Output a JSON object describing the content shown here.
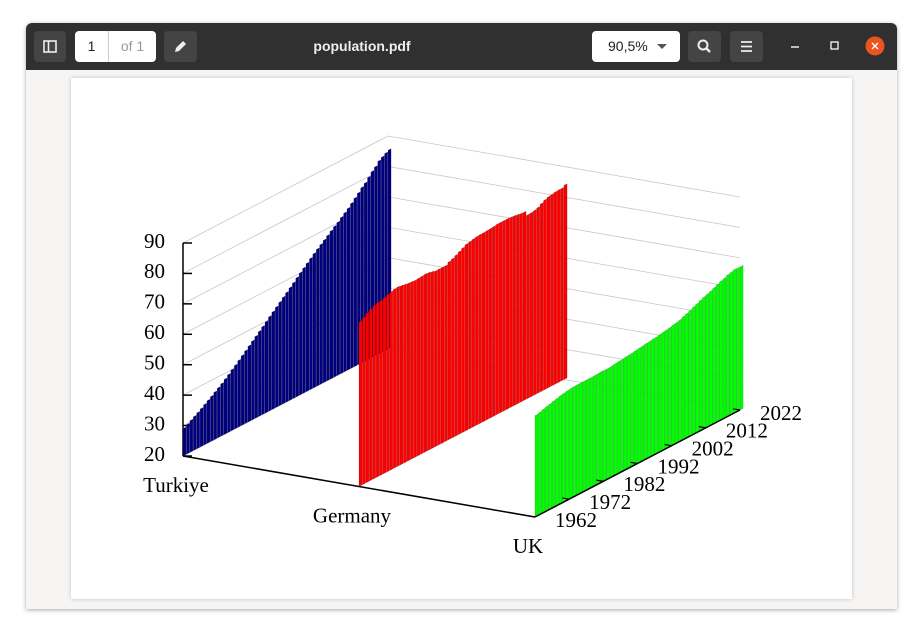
{
  "viewer": {
    "title": "population.pdf",
    "page_number": "1",
    "page_count": "of 1",
    "zoom": "90,5%"
  },
  "chart_data": {
    "type": "bar3d",
    "categories": [
      "Turkiye",
      "Germany",
      "UK"
    ],
    "x": [
      1962,
      1963,
      1964,
      1965,
      1966,
      1967,
      1968,
      1969,
      1970,
      1971,
      1972,
      1973,
      1974,
      1975,
      1976,
      1977,
      1978,
      1979,
      1980,
      1981,
      1982,
      1983,
      1984,
      1985,
      1986,
      1987,
      1988,
      1989,
      1990,
      1991,
      1992,
      1993,
      1994,
      1995,
      1996,
      1997,
      1998,
      1999,
      2000,
      2001,
      2002,
      2003,
      2004,
      2005,
      2006,
      2007,
      2008,
      2009,
      2010,
      2011,
      2012,
      2013,
      2014,
      2015,
      2016,
      2017,
      2018,
      2019,
      2020,
      2021,
      2022
    ],
    "series": [
      {
        "color": "#00007f",
        "values": [
          29.0,
          29.7,
          30.4,
          31.1,
          31.8,
          32.5,
          33.3,
          34.0,
          34.8,
          35.6,
          36.4,
          37.2,
          38.1,
          39.0,
          40.0,
          40.9,
          41.9,
          42.9,
          43.9,
          44.9,
          45.9,
          46.9,
          47.9,
          48.9,
          49.9,
          51.0,
          52.0,
          53.0,
          54.0,
          55.0,
          56.0,
          57.0,
          58.0,
          59.1,
          60.1,
          61.1,
          62.1,
          63.1,
          64.1,
          65.0,
          65.9,
          66.8,
          67.7,
          68.6,
          69.5,
          70.3,
          71.3,
          72.2,
          73.1,
          74.2,
          75.3,
          76.4,
          77.6,
          78.5,
          79.8,
          81.1,
          82.1,
          83.4,
          84.1,
          84.8,
          85.3
        ]
      },
      {
        "color": "#ff0000",
        "values": [
          74.0,
          74.8,
          75.6,
          76.3,
          76.9,
          77.2,
          77.3,
          77.7,
          78.2,
          78.5,
          78.8,
          78.9,
          78.7,
          78.5,
          78.3,
          78.2,
          78.1,
          78.2,
          78.3,
          78.4,
          78.3,
          78.0,
          77.7,
          77.7,
          77.7,
          77.7,
          78.4,
          78.8,
          79.4,
          80.0,
          80.6,
          81.2,
          81.4,
          81.7,
          81.9,
          82.0,
          82.0,
          82.1,
          82.2,
          82.3,
          82.5,
          82.5,
          82.5,
          82.5,
          82.4,
          82.3,
          82.1,
          81.9,
          81.8,
          80.3,
          80.4,
          80.6,
          81.0,
          81.7,
          82.3,
          82.7,
          82.9,
          83.1,
          83.2,
          83.2,
          83.8
        ]
      },
      {
        "color": "#00ff00",
        "values": [
          53.3,
          53.6,
          54.0,
          54.3,
          54.6,
          54.9,
          55.2,
          55.5,
          55.7,
          55.9,
          56.1,
          56.2,
          56.2,
          56.2,
          56.2,
          56.2,
          56.2,
          56.2,
          56.3,
          56.4,
          56.3,
          56.3,
          56.4,
          56.6,
          56.7,
          56.8,
          57.0,
          57.1,
          57.2,
          57.4,
          57.6,
          57.7,
          57.9,
          58.0,
          58.2,
          58.3,
          58.5,
          58.7,
          58.9,
          59.1,
          59.4,
          59.6,
          59.9,
          60.4,
          60.8,
          61.3,
          61.8,
          62.3,
          62.8,
          63.3,
          63.7,
          64.1,
          64.6,
          65.1,
          65.6,
          66.0,
          66.5,
          66.8,
          67.1,
          67.0,
          67.0
        ]
      }
    ],
    "xlim": [
      1962,
      2022
    ],
    "xticks": [
      1962,
      1972,
      1982,
      1992,
      2002,
      2012,
      2022
    ],
    "zlim": [
      20,
      90
    ],
    "zticks": [
      20,
      30,
      40,
      50,
      60,
      70,
      80,
      90
    ],
    "grid": true
  }
}
